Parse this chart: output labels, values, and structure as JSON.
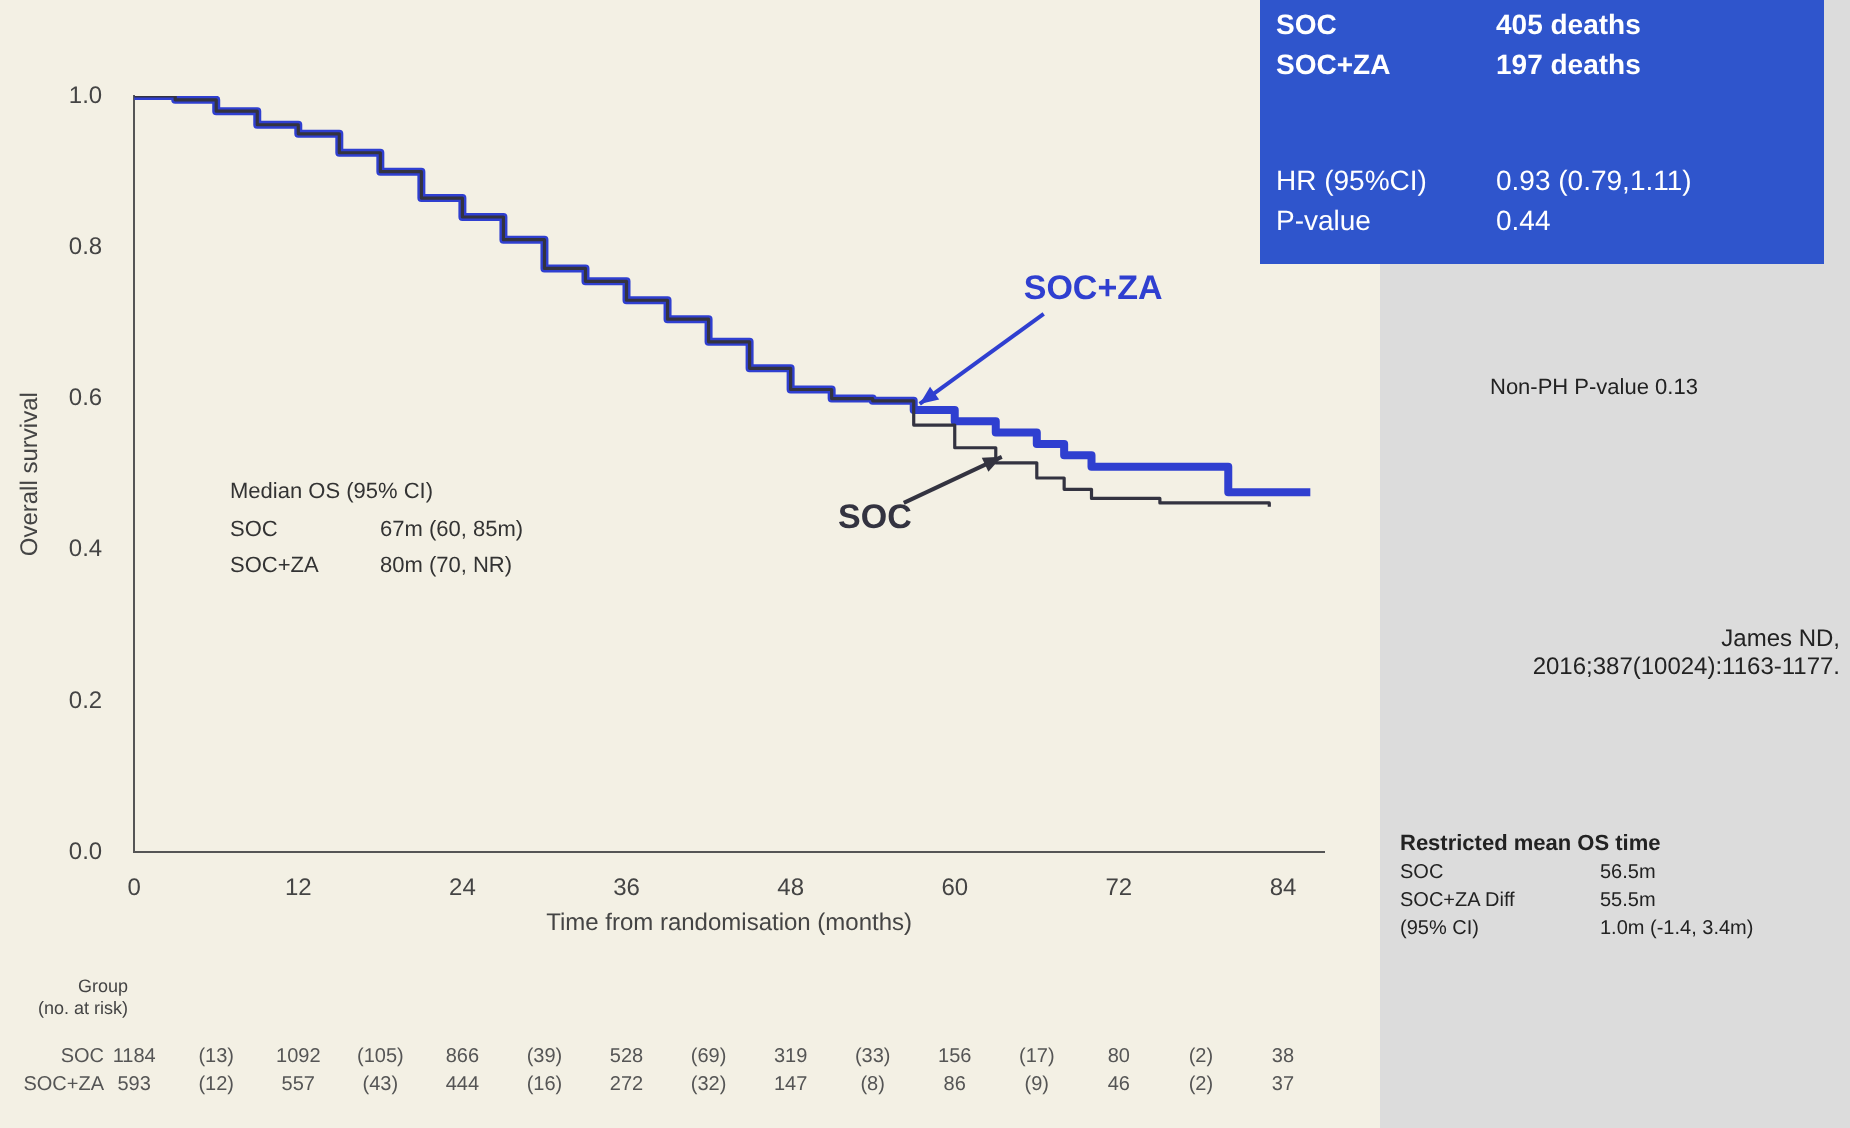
{
  "chart_data": {
    "type": "step",
    "xlabel": "Time from randomisation (months)",
    "ylabel": "Overall survival",
    "xlim": [
      0,
      87
    ],
    "xticks": [
      0,
      12,
      24,
      36,
      48,
      60,
      72,
      84
    ],
    "ylim": [
      0,
      1
    ],
    "yticks": [
      {
        "value": 0,
        "label": "0.0"
      },
      {
        "value": 0.2,
        "label": "0.2"
      },
      {
        "value": 0.4,
        "label": "0.4"
      },
      {
        "value": 0.6,
        "label": "0.6"
      },
      {
        "value": 0.8,
        "label": "0.8"
      },
      {
        "value": 1,
        "label": "1.0"
      }
    ],
    "legend": false,
    "grid": false,
    "series": [
      {
        "name": "SOC",
        "color": "#333340",
        "x": [
          0,
          3,
          6,
          9,
          12,
          15,
          18,
          21,
          24,
          27,
          30,
          33,
          36,
          39,
          42,
          45,
          48,
          51,
          54,
          57,
          60,
          63,
          66,
          68,
          70,
          75,
          83
        ],
        "values": [
          1.0,
          0.995,
          0.98,
          0.962,
          0.95,
          0.925,
          0.9,
          0.865,
          0.84,
          0.81,
          0.772,
          0.755,
          0.73,
          0.705,
          0.675,
          0.64,
          0.612,
          0.6,
          0.597,
          0.565,
          0.535,
          0.515,
          0.495,
          0.48,
          0.468,
          0.462,
          0.457
        ]
      },
      {
        "name": "SOC+ZA",
        "color": "#2f3fd0",
        "x": [
          0,
          3,
          6,
          9,
          12,
          15,
          18,
          21,
          24,
          27,
          30,
          33,
          36,
          39,
          42,
          45,
          48,
          51,
          54,
          57,
          60,
          63,
          66,
          68,
          70,
          79,
          80,
          86
        ],
        "values": [
          1.0,
          0.995,
          0.98,
          0.962,
          0.95,
          0.925,
          0.9,
          0.865,
          0.84,
          0.81,
          0.772,
          0.755,
          0.73,
          0.705,
          0.675,
          0.64,
          0.612,
          0.6,
          0.597,
          0.585,
          0.57,
          0.555,
          0.54,
          0.525,
          0.51,
          0.51,
          0.476,
          0.476
        ]
      }
    ],
    "annotations": [
      "Median OS (95% CI)",
      "SOC",
      "67m (60, 85m)",
      "SOC+ZA",
      "80m (70, NR)",
      "SOC",
      "405 deaths",
      "SOC+ZA",
      "197 deaths",
      "HR (95%CI)",
      "0.93 (0.79,1.11)",
      "P-value",
      "0.44",
      "Non-PH P-value 0.13",
      "James ND, 2016;387(10024):1163-1177.",
      "Restricted mean OS time",
      "SOC",
      "56.5m",
      "SOC+ZA Diff",
      "55.5m",
      "(95% CI)",
      "1.0m (-1.4, 3.4m)",
      "Group",
      "(no. at risk)",
      "SOC 1184 (13) 1092 (105) 866 (39) 528 (69) 319 (33) 156 (17) 80 (2) 38",
      "SOC+ZA 593 (12) 557 (43) 444 (16) 272 (32) 147 (8) 86 (9) 46 (2) 37"
    ]
  }
}
